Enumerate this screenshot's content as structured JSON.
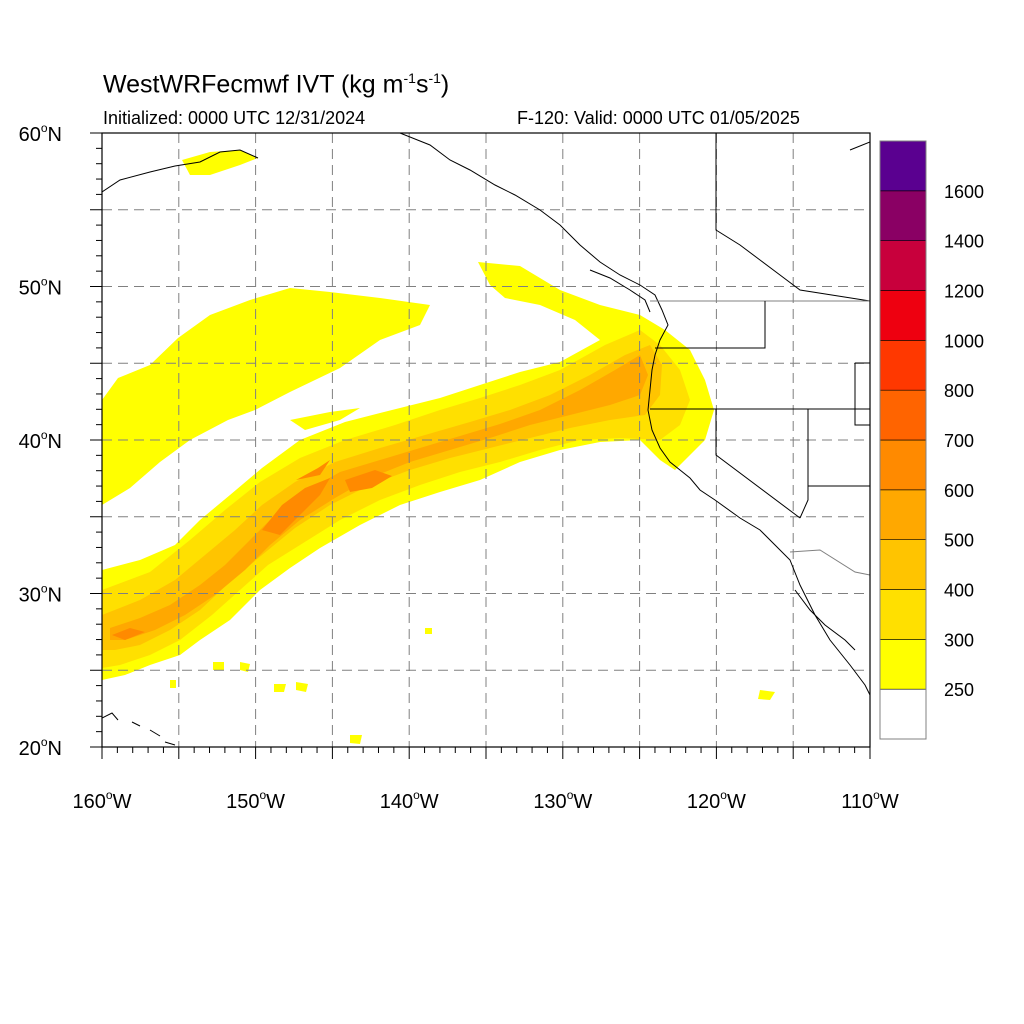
{
  "title": {
    "main": "WestWRFecmwf IVT (kg m",
    "exp1": "-1",
    "mid": "s",
    "exp2": "-1",
    "end": ")"
  },
  "initialized": "Initialized: 0000 UTC 12/31/2024",
  "valid": "F-120: Valid: 0000 UTC 01/05/2025",
  "lat_labels": [
    {
      "lat": 60,
      "text": "60"
    },
    {
      "lat": 50,
      "text": "50"
    },
    {
      "lat": 40,
      "text": "40"
    },
    {
      "lat": 30,
      "text": "30"
    },
    {
      "lat": 20,
      "text": "20"
    }
  ],
  "lat_suffix": "N",
  "lon_labels": [
    {
      "lon": -160,
      "text": "160"
    },
    {
      "lon": -150,
      "text": "150"
    },
    {
      "lon": -140,
      "text": "140"
    },
    {
      "lon": -130,
      "text": "130"
    },
    {
      "lon": -120,
      "text": "120"
    },
    {
      "lon": -110,
      "text": "110"
    }
  ],
  "lon_suffix": "W",
  "map_extent": {
    "lon_min": -160,
    "lon_max": -110,
    "lat_min": 20,
    "lat_max": 60
  },
  "colorbar": {
    "labels": [
      "250",
      "300",
      "400",
      "500",
      "600",
      "700",
      "800",
      "1000",
      "1200",
      "1400",
      "1600"
    ],
    "colors": [
      "#ffffff",
      "#ffff00",
      "#ffe000",
      "#ffc400",
      "#ffa800",
      "#ff8a00",
      "#ff6400",
      "#ff3800",
      "#ee0010",
      "#c8003c",
      "#8a0064",
      "#5a0090"
    ]
  },
  "ivt_bands": [
    {
      "level": 250,
      "color": "#ffff00"
    },
    {
      "level": 300,
      "color": "#ffe000"
    },
    {
      "level": 400,
      "color": "#ffc400"
    },
    {
      "level": 500,
      "color": "#ffa800"
    },
    {
      "level": 600,
      "color": "#ff8a00"
    }
  ]
}
